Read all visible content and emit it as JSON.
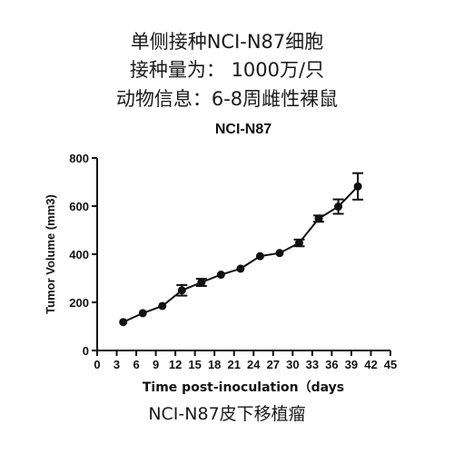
{
  "header": {
    "line1": "单侧接种NCI-N87细胞",
    "line2": "接种量为： 1000万/只",
    "line3": "动物信息：6-8周雌性裸鼠"
  },
  "caption": "NCI-N87皮下移植瘤",
  "chart_data": {
    "type": "line",
    "title": "NCI-N87",
    "xlabel": "Time post-inoculation（days",
    "ylabel": "Tumor Volume (mm3)",
    "xlim": [
      0,
      45
    ],
    "ylim": [
      0,
      800
    ],
    "x_ticks": [
      0,
      3,
      6,
      9,
      12,
      15,
      18,
      21,
      24,
      27,
      30,
      33,
      36,
      39,
      42,
      45
    ],
    "y_ticks": [
      0,
      200,
      400,
      600,
      800
    ],
    "grid": false,
    "legend": "none",
    "series": [
      {
        "color": "#111111",
        "points": [
          {
            "x": 4,
            "y": 118,
            "err": 0
          },
          {
            "x": 7,
            "y": 155,
            "err": 0
          },
          {
            "x": 10,
            "y": 185,
            "err": 0
          },
          {
            "x": 13,
            "y": 250,
            "err": 22
          },
          {
            "x": 16,
            "y": 283,
            "err": 15
          },
          {
            "x": 19,
            "y": 315,
            "err": 0
          },
          {
            "x": 22,
            "y": 340,
            "err": 0
          },
          {
            "x": 25,
            "y": 392,
            "err": 0
          },
          {
            "x": 28,
            "y": 405,
            "err": 0
          },
          {
            "x": 31,
            "y": 447,
            "err": 14
          },
          {
            "x": 34,
            "y": 548,
            "err": 13
          },
          {
            "x": 37,
            "y": 598,
            "err": 30
          },
          {
            "x": 40,
            "y": 682,
            "err": 55
          }
        ]
      }
    ]
  }
}
